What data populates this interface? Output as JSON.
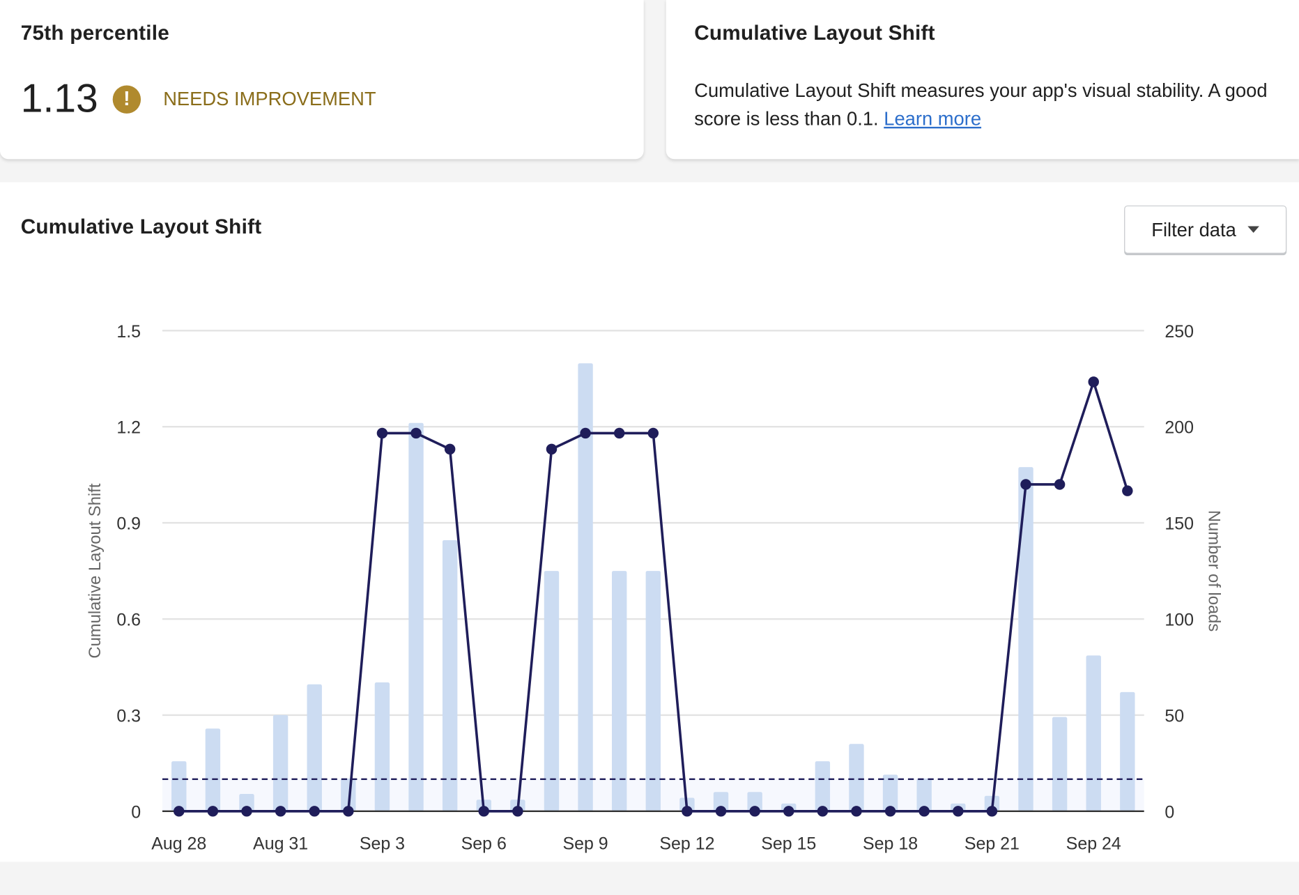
{
  "percentile_card": {
    "title": "75th percentile",
    "value": "1.13",
    "status": "NEEDS IMPROVEMENT",
    "status_icon": "exclamation-circle-icon",
    "status_color": "#b08a2e"
  },
  "info_card": {
    "title": "Cumulative Layout Shift",
    "description": "Cumulative Layout Shift measures your app's visual stability. A good score is less than 0.1.",
    "link": "Learn more"
  },
  "chart_card": {
    "title": "Cumulative Layout Shift",
    "filter_label": "Filter data"
  },
  "chart_data": {
    "type": "bar+line",
    "dates": [
      "Aug 28",
      "Aug 29",
      "Aug 30",
      "Aug 31",
      "Sep 1",
      "Sep 2",
      "Sep 3",
      "Sep 4",
      "Sep 5",
      "Sep 6",
      "Sep 7",
      "Sep 8",
      "Sep 9",
      "Sep 10",
      "Sep 11",
      "Sep 12",
      "Sep 13",
      "Sep 14",
      "Sep 15",
      "Sep 16",
      "Sep 17",
      "Sep 18",
      "Sep 19",
      "Sep 20",
      "Sep 21",
      "Sep 22",
      "Sep 23",
      "Sep 24",
      "Sep 25"
    ],
    "x_tick_labels": [
      "Aug 28",
      "Aug 31",
      "Sep 3",
      "Sep 6",
      "Sep 9",
      "Sep 12",
      "Sep 15",
      "Sep 18",
      "Sep 21",
      "Sep 24"
    ],
    "series": [
      {
        "name": "Number of loads",
        "type": "bar",
        "axis": "right",
        "color": "#ccdcf2",
        "values": [
          26,
          43,
          9,
          50,
          66,
          17,
          67,
          202,
          141,
          6,
          6,
          125,
          233,
          125,
          125,
          7,
          10,
          10,
          4,
          26,
          35,
          19,
          17,
          4,
          8,
          179,
          49,
          81,
          62
        ]
      },
      {
        "name": "Cumulative Layout Shift",
        "type": "line",
        "axis": "left",
        "color": "#1f1d5a",
        "values": [
          0,
          0,
          0,
          0,
          0,
          0,
          1.18,
          1.18,
          1.13,
          0,
          0,
          1.13,
          1.18,
          1.18,
          1.18,
          0,
          0,
          0,
          0,
          0,
          0,
          0,
          0,
          0,
          0,
          1.02,
          1.02,
          1.34,
          1.0
        ]
      }
    ],
    "ylabel_left": "Cumulative Layout Shift",
    "ylabel_right": "Number of loads",
    "ylim_left": [
      0,
      1.5
    ],
    "ylim_right": [
      0,
      250
    ],
    "yticks_left": [
      "0",
      "0.3",
      "0.6",
      "0.9",
      "1.2",
      "1.5"
    ],
    "yticks_right": [
      "0",
      "50",
      "100",
      "150",
      "200",
      "250"
    ],
    "threshold": 0.1,
    "threshold_color": "#1f1d5a",
    "good_band_color": "#f6f8fe",
    "grid": true
  }
}
